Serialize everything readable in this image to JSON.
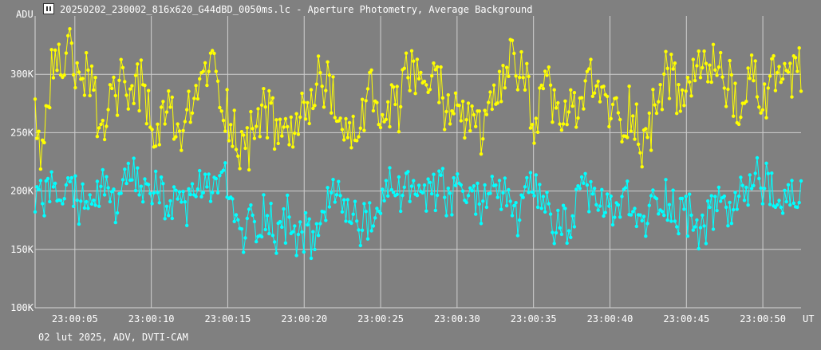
{
  "window": {
    "title": "20250202_230002_816x620_G44dBD_0050ms.lc - Aperture Photometry, Average Background",
    "icon": "app-icon"
  },
  "footer": "02 lut 2025, ADV, DVTI-CAM",
  "chart_data": {
    "type": "line",
    "title": "20250202_230002_816x620_G44dBD_0050ms.lc - Aperture Photometry, Average Background",
    "ylabel": "ADU",
    "xlabel": "UT",
    "x_range": [
      "23:00:02.4",
      "23:00:52.5"
    ],
    "ylim": [
      100000,
      350000
    ],
    "y_ticks": [
      {
        "value": 100000,
        "label": "100K"
      },
      {
        "value": 150000,
        "label": "150K"
      },
      {
        "value": 200000,
        "label": "200K"
      },
      {
        "value": 250000,
        "label": "250K"
      },
      {
        "value": 300000,
        "label": "300K"
      }
    ],
    "x_ticks": [
      {
        "value": 5,
        "label": "23:00:05"
      },
      {
        "value": 10,
        "label": "23:00:10"
      },
      {
        "value": 15,
        "label": "23:00:15"
      },
      {
        "value": 20,
        "label": "23:00:20"
      },
      {
        "value": 25,
        "label": "23:00:25"
      },
      {
        "value": 30,
        "label": "23:00:30"
      },
      {
        "value": 35,
        "label": "23:00:35"
      },
      {
        "value": 40,
        "label": "23:00:40"
      },
      {
        "value": 45,
        "label": "23:00:45"
      },
      {
        "value": 50,
        "label": "23:00:50"
      }
    ],
    "x_start_seconds": 2.4,
    "x_end_seconds": 52.5,
    "grid": true,
    "series": [
      {
        "color": "#ffff00",
        "values": [
          280000,
          233000,
          255000,
          290000,
          305000,
          315000,
          295000,
          300000,
          320000,
          310000,
          300000,
          285000,
          305000,
          295000,
          270000,
          255000,
          262000,
          270000,
          280000,
          288000,
          292000,
          285000,
          280000,
          290000,
          292000,
          285000,
          260000,
          250000,
          255000,
          258000,
          270000,
          262000,
          255000,
          252000,
          248000,
          262000,
          272000,
          285000,
          292000,
          305000,
          310000,
          300000,
          290000,
          278000,
          268000,
          255000,
          245000,
          240000,
          235000,
          242000,
          255000,
          268000,
          275000,
          262000,
          262000,
          250000,
          248000,
          255000,
          258000,
          250000,
          252000,
          260000,
          268000,
          275000,
          282000,
          305000,
          295000,
          285000,
          275000,
          265000,
          255000,
          245000,
          240000,
          250000,
          262000,
          270000,
          280000,
          285000,
          270000,
          262000,
          255000,
          265000,
          270000,
          265000,
          285000,
          300000,
          310000,
          295000,
          280000,
          290000,
          295000,
          300000,
          290000,
          282000,
          270000,
          275000,
          280000,
          272000,
          262000,
          255000,
          258000,
          262000,
          250000,
          255000,
          262000,
          270000,
          278000,
          290000,
          305000,
          318000,
          305000,
          298000,
          292000,
          278000,
          262000,
          265000,
          272000,
          285000,
          282000,
          270000,
          262000,
          260000,
          270000,
          262000,
          270000,
          282000,
          295000,
          290000,
          288000,
          284000,
          280000,
          272000,
          265000,
          262000,
          258000,
          265000,
          275000,
          260000,
          248000,
          240000,
          245000,
          262000,
          278000,
          290000,
          305000,
          295000,
          290000,
          280000,
          272000,
          290000,
          300000,
          310000,
          302000,
          295000,
          300000,
          315000,
          305000,
          300000,
          295000,
          285000,
          268000,
          262000,
          275000,
          290000,
          302000,
          288000,
          280000,
          282000,
          292000,
          298000,
          300000,
          305000,
          298000,
          290000,
          296000,
          302000
        ],
        "jitter": 24000
      },
      {
        "color": "#00ffff",
        "values": [
          185000,
          190000,
          195000,
          205000,
          195000,
          185000,
          195000,
          205000,
          200000,
          195000,
          190000,
          200000,
          195000,
          190000,
          198000,
          202000,
          200000,
          195000,
          190000,
          185000,
          198000,
          205000,
          210000,
          205000,
          200000,
          195000,
          205000,
          200000,
          195000,
          192000,
          198000,
          188000,
          182000,
          178000,
          185000,
          195000,
          202000,
          205000,
          200000,
          195000,
          205000,
          212000,
          210000,
          205000,
          195000,
          180000,
          165000,
          160000,
          170000,
          175000,
          170000,
          178000,
          185000,
          175000,
          168000,
          162000,
          170000,
          178000,
          172000,
          165000,
          160000,
          162000,
          158000,
          155000,
          165000,
          180000,
          195000,
          200000,
          192000,
          185000,
          188000,
          180000,
          178000,
          175000,
          170000,
          168000,
          172000,
          180000,
          185000,
          190000,
          205000,
          210000,
          205000,
          195000,
          200000,
          202000,
          205000,
          198000,
          192000,
          190000,
          195000,
          200000,
          202000,
          195000,
          190000,
          195000,
          202000,
          200000,
          195000,
          192000,
          188000,
          192000,
          200000,
          210000,
          205000,
          198000,
          195000,
          188000,
          182000,
          178000,
          185000,
          192000,
          198000,
          195000,
          190000,
          192000,
          180000,
          170000,
          165000,
          168000,
          172000,
          178000,
          182000,
          190000,
          195000,
          200000,
          196000,
          192000,
          188000,
          182000,
          178000,
          185000,
          190000,
          195000,
          188000,
          180000,
          175000,
          170000,
          175000,
          182000,
          190000,
          195000,
          198000,
          192000,
          185000,
          180000,
          185000,
          182000,
          178000,
          175000,
          170000,
          165000,
          172000,
          180000,
          190000,
          195000,
          188000,
          182000,
          186000,
          190000,
          195000,
          200000,
          210000,
          215000,
          210000,
          205000,
          198000,
          192000,
          188000,
          185000,
          190000,
          195000,
          198000,
          200000
        ],
        "jitter": 20000
      }
    ]
  }
}
